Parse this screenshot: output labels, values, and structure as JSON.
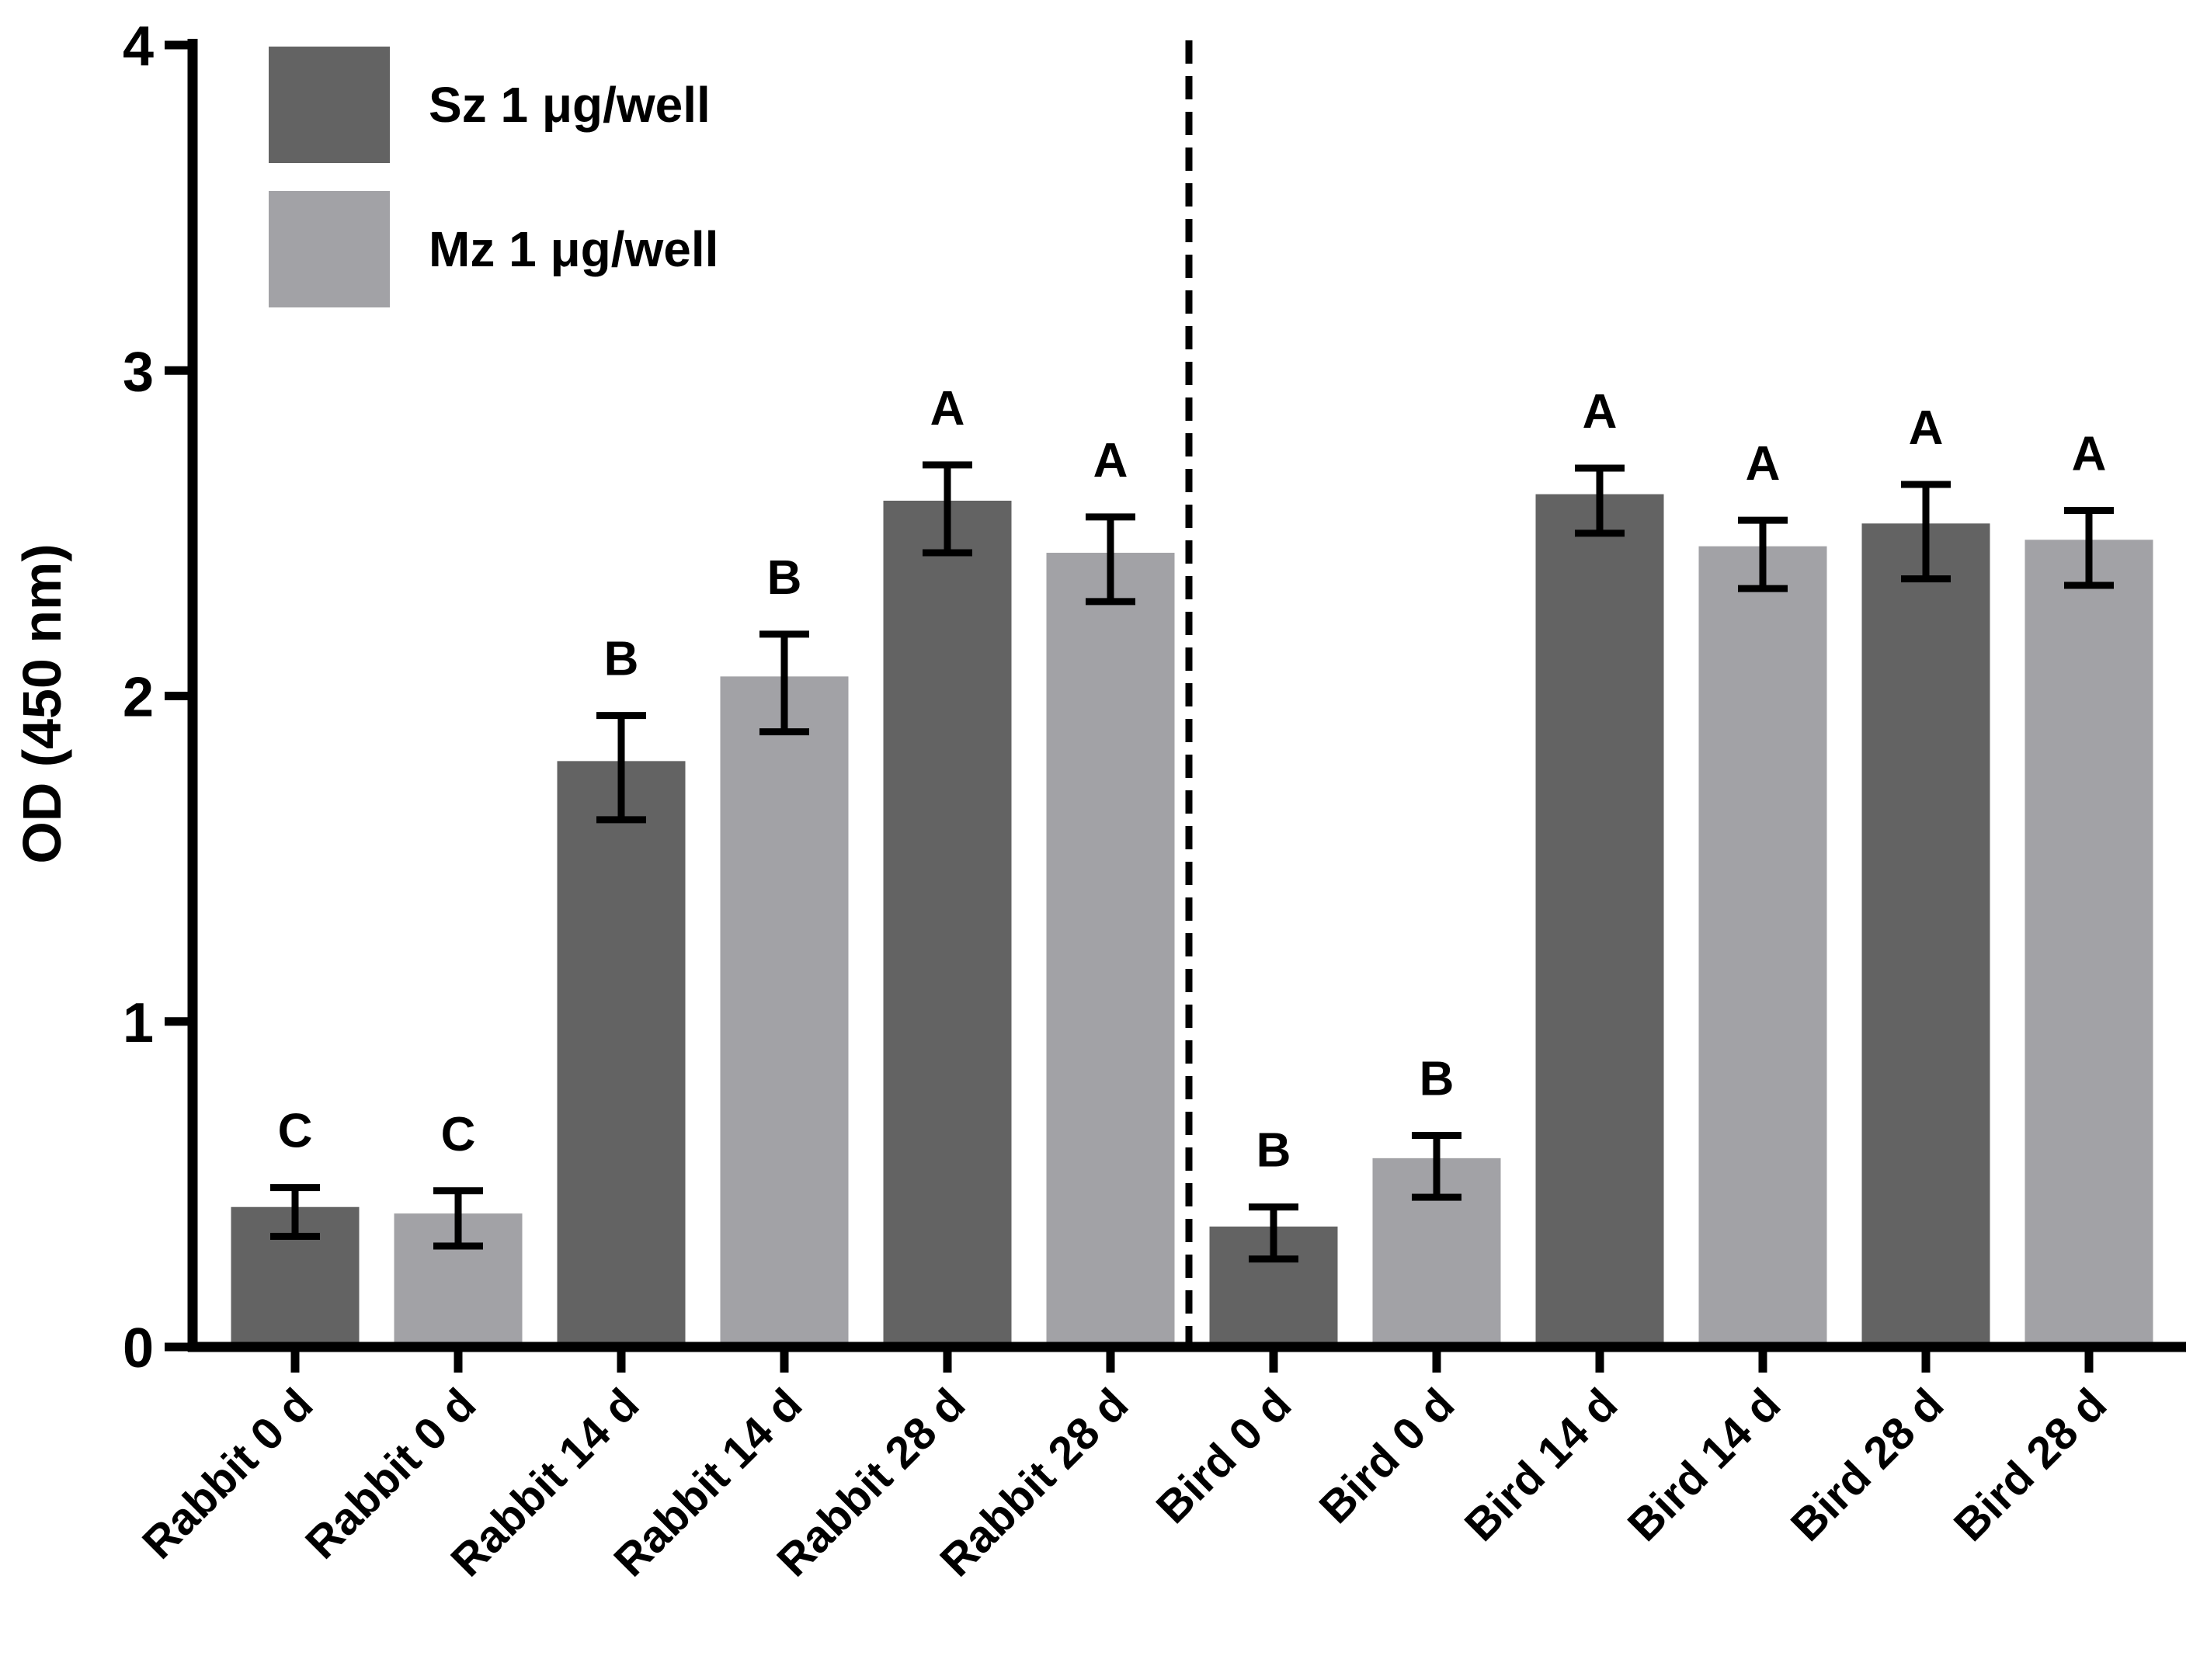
{
  "chart_data": {
    "type": "bar",
    "title": "",
    "xlabel": "",
    "ylabel": "OD (450 nm)",
    "ylim": [
      0,
      4
    ],
    "yticks": [
      0,
      1,
      2,
      3,
      4
    ],
    "grid": false,
    "legend_position": "top-left",
    "series": [
      {
        "name": "Sz 1 μg/well",
        "color": "#636363"
      },
      {
        "name": "Mz 1 μg/well",
        "color": "#a2a2a6"
      }
    ],
    "categories": [
      "Rabbit 0 d",
      "Rabbit 0 d",
      "Rabbit 14 d",
      "Rabbit 14 d",
      "Rabbit 28 d",
      "Rabbit 28 d",
      "Bird 0 d",
      "Bird 0 d",
      "Bird 14 d",
      "Bird 14 d",
      "Bird 28 d",
      "Bird 28 d"
    ],
    "bars": [
      {
        "series": 0,
        "value": 0.43,
        "err_low": 0.09,
        "err_high": 0.06,
        "label": "C"
      },
      {
        "series": 1,
        "value": 0.41,
        "err_low": 0.1,
        "err_high": 0.07,
        "label": "C"
      },
      {
        "series": 0,
        "value": 1.8,
        "err_low": 0.18,
        "err_high": 0.14,
        "label": "B"
      },
      {
        "series": 1,
        "value": 2.06,
        "err_low": 0.17,
        "err_high": 0.13,
        "label": "B"
      },
      {
        "series": 0,
        "value": 2.6,
        "err_low": 0.16,
        "err_high": 0.11,
        "label": "A"
      },
      {
        "series": 1,
        "value": 2.44,
        "err_low": 0.15,
        "err_high": 0.11,
        "label": "A"
      },
      {
        "series": 0,
        "value": 0.37,
        "err_low": 0.1,
        "err_high": 0.06,
        "label": "B"
      },
      {
        "series": 1,
        "value": 0.58,
        "err_low": 0.12,
        "err_high": 0.07,
        "label": "B"
      },
      {
        "series": 0,
        "value": 2.62,
        "err_low": 0.12,
        "err_high": 0.08,
        "label": "A"
      },
      {
        "series": 1,
        "value": 2.46,
        "err_low": 0.13,
        "err_high": 0.08,
        "label": "A"
      },
      {
        "series": 0,
        "value": 2.53,
        "err_low": 0.17,
        "err_high": 0.12,
        "label": "A"
      },
      {
        "series": 1,
        "value": 2.48,
        "err_low": 0.14,
        "err_high": 0.09,
        "label": "A"
      }
    ],
    "divider_after_index": 5
  }
}
